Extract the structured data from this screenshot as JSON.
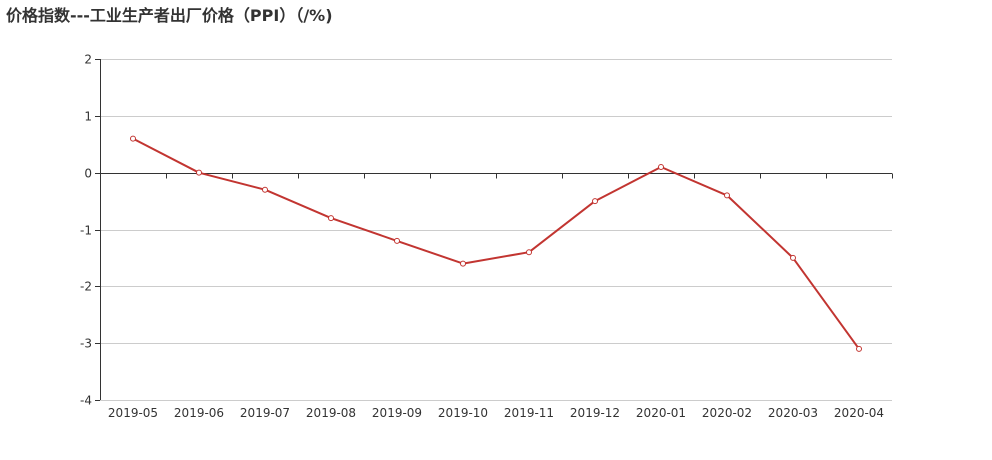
{
  "colors": {
    "series": "#c23531",
    "axis": "#333333",
    "grid": "#cccccc",
    "text": "#333333"
  },
  "chart_data": {
    "type": "line",
    "title": "价格指数---工业生产者出厂价格（PPI）（/%)",
    "xlabel": "",
    "ylabel": "",
    "categories": [
      "2019-05",
      "2019-06",
      "2019-07",
      "2019-08",
      "2019-09",
      "2019-10",
      "2019-11",
      "2019-12",
      "2020-01",
      "2020-02",
      "2020-03",
      "2020-04"
    ],
    "series": [
      {
        "values": [
          0.6,
          0.0,
          -0.3,
          -0.8,
          -1.2,
          -1.6,
          -1.4,
          -0.5,
          0.1,
          -0.4,
          -1.5,
          -3.1
        ]
      }
    ],
    "ylim": [
      -4,
      2
    ],
    "yticks": [
      2,
      1,
      0,
      -1,
      -2,
      -3,
      -4
    ],
    "grid": true,
    "legend": "none",
    "markers": "hollow-circle"
  }
}
